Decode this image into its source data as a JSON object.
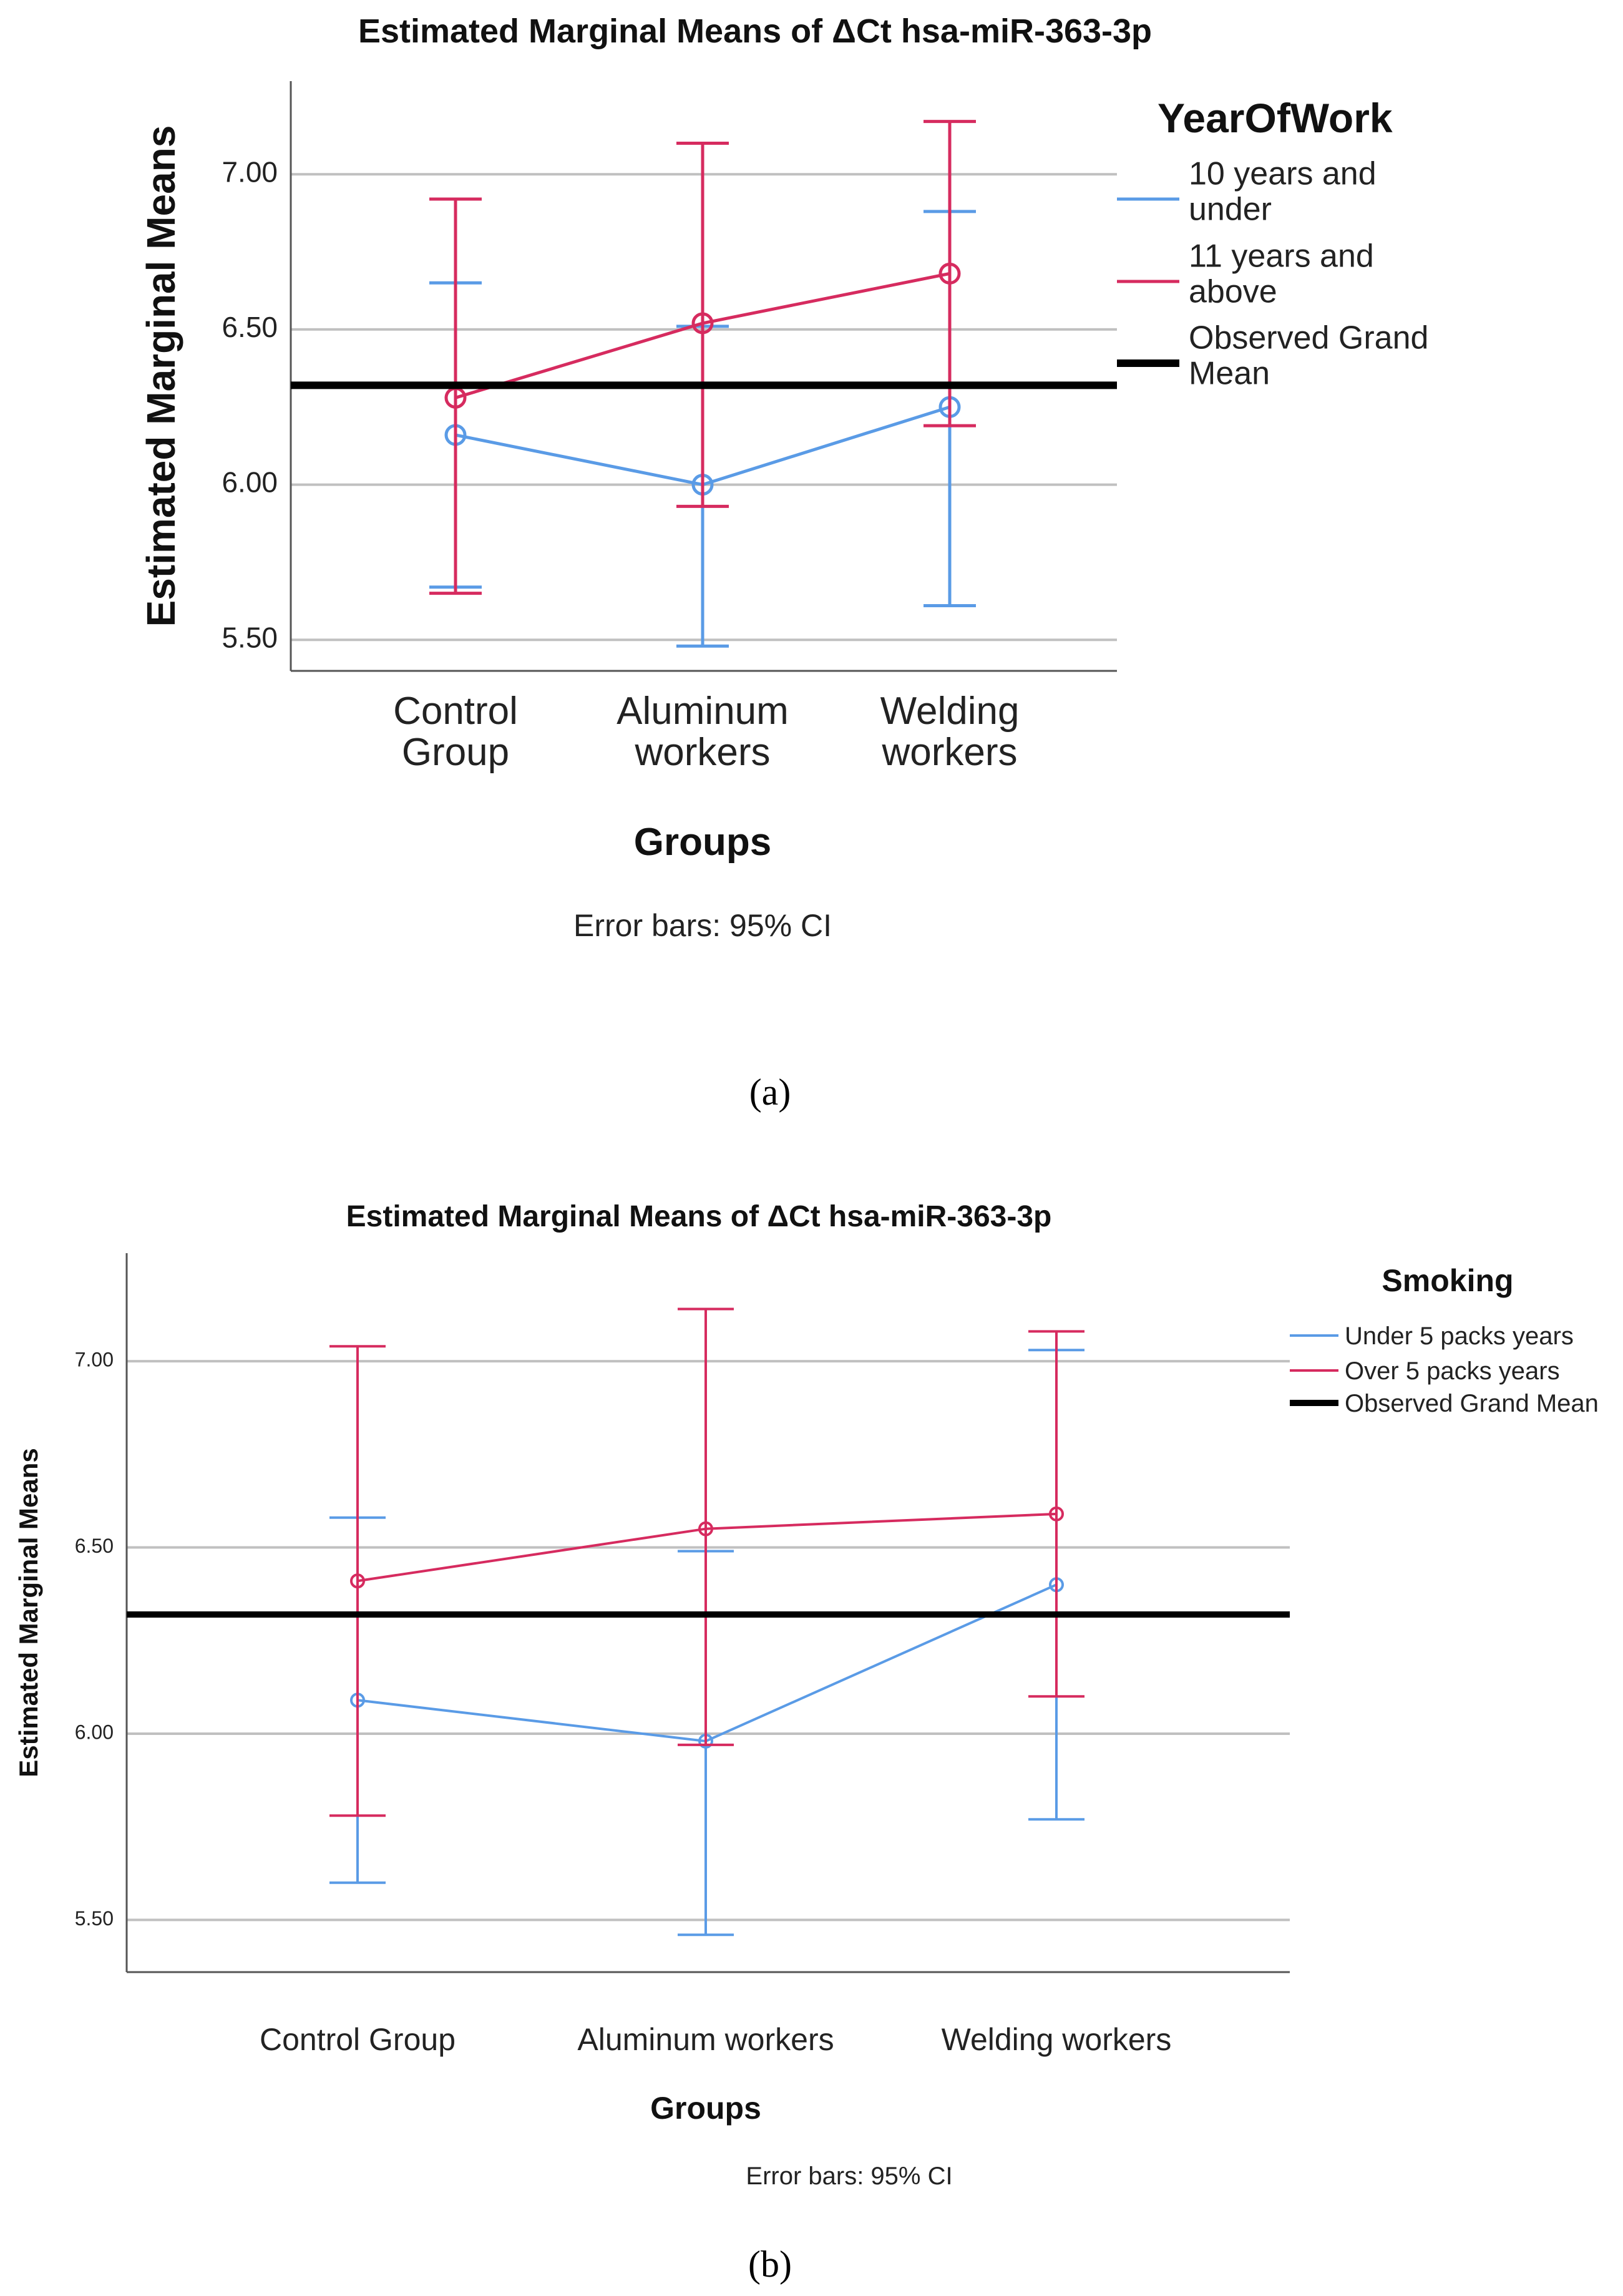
{
  "captions": {
    "a": "(a)",
    "b": "(b)"
  },
  "chart_data": [
    {
      "id": "a",
      "type": "line",
      "title": "Estimated Marginal Means of ΔCt hsa-miR-363-3p",
      "xlabel": "Groups",
      "ylabel": "Estimated Marginal Means",
      "footnote": "Error bars: 95% CI",
      "categories": [
        "Control Group",
        "Aluminum workers",
        "Welding workers"
      ],
      "category_lines": [
        [
          "Control",
          "Group"
        ],
        [
          "Aluminum",
          "workers"
        ],
        [
          "Welding",
          "workers"
        ]
      ],
      "ylim": [
        5.4,
        7.3
      ],
      "yticks": [
        5.5,
        6.0,
        6.5,
        7.0
      ],
      "ytick_labels": [
        "5.50",
        "6.00",
        "6.50",
        "7.00"
      ],
      "grid": true,
      "legend_title": "YearOfWork",
      "legend_position": "right",
      "grand_mean": {
        "label": "Observed Grand Mean",
        "label_lines": [
          "Observed Grand",
          "Mean"
        ],
        "value": 6.32,
        "color": "#000000"
      },
      "series": [
        {
          "name": "10 years and under",
          "label_lines": [
            "10 years and",
            "under"
          ],
          "color": "#5a9be6",
          "values": [
            6.16,
            6.0,
            6.25
          ],
          "ci_low": [
            5.67,
            5.48,
            5.61
          ],
          "ci_high": [
            6.65,
            6.51,
            6.88
          ]
        },
        {
          "name": "11 years and above",
          "label_lines": [
            "11 years and",
            "above"
          ],
          "color": "#d62b5f",
          "values": [
            6.28,
            6.52,
            6.68
          ],
          "ci_low": [
            5.65,
            5.93,
            6.19
          ],
          "ci_high": [
            6.92,
            7.1,
            7.17
          ]
        }
      ]
    },
    {
      "id": "b",
      "type": "line",
      "title": "Estimated Marginal Means of ΔCt hsa-miR-363-3p",
      "xlabel": "Groups",
      "ylabel": "Estimated Marginal Means",
      "footnote": "Error bars: 95% CI",
      "categories": [
        "Control Group",
        "Aluminum workers",
        "Welding workers"
      ],
      "category_lines": [
        [
          "Control Group"
        ],
        [
          "Aluminum workers"
        ],
        [
          "Welding workers"
        ]
      ],
      "ylim": [
        5.36,
        7.29
      ],
      "yticks": [
        5.5,
        6.0,
        6.5,
        7.0
      ],
      "ytick_labels": [
        "5.50",
        "6.00",
        "6.50",
        "7.00"
      ],
      "grid": true,
      "legend_title": "Smoking",
      "legend_position": "top-right",
      "grand_mean": {
        "label": "Observed Grand Mean",
        "label_lines": [
          "Observed Grand Mean"
        ],
        "value": 6.32,
        "color": "#000000"
      },
      "series": [
        {
          "name": "Under 5 packs years",
          "label_lines": [
            "Under 5 packs years"
          ],
          "color": "#5a9be6",
          "values": [
            6.09,
            5.98,
            6.4
          ],
          "ci_low": [
            5.6,
            5.46,
            5.77
          ],
          "ci_high": [
            6.58,
            6.49,
            7.03
          ]
        },
        {
          "name": "Over 5 packs years",
          "label_lines": [
            "Over 5 packs years"
          ],
          "color": "#d62b5f",
          "values": [
            6.41,
            6.55,
            6.59
          ],
          "ci_low": [
            5.78,
            5.97,
            6.1
          ],
          "ci_high": [
            7.04,
            7.14,
            7.08
          ]
        }
      ]
    }
  ]
}
